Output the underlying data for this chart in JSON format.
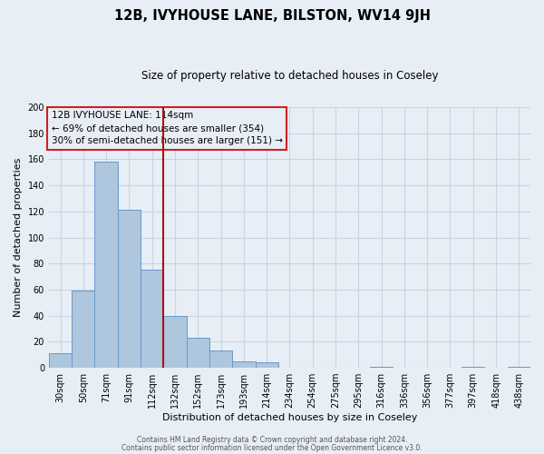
{
  "title": "12B, IVYHOUSE LANE, BILSTON, WV14 9JH",
  "subtitle": "Size of property relative to detached houses in Coseley",
  "xlabel": "Distribution of detached houses by size in Coseley",
  "ylabel": "Number of detached properties",
  "bar_labels": [
    "30sqm",
    "50sqm",
    "71sqm",
    "91sqm",
    "112sqm",
    "132sqm",
    "152sqm",
    "173sqm",
    "193sqm",
    "214sqm",
    "234sqm",
    "254sqm",
    "275sqm",
    "295sqm",
    "316sqm",
    "336sqm",
    "356sqm",
    "377sqm",
    "397sqm",
    "418sqm",
    "438sqm"
  ],
  "bar_values": [
    11,
    59,
    158,
    121,
    75,
    40,
    23,
    13,
    5,
    4,
    0,
    0,
    0,
    0,
    1,
    0,
    0,
    0,
    1,
    0,
    1
  ],
  "bar_color": "#aec6de",
  "bar_edge_color": "#6699cc",
  "vline_x": 4.5,
  "vline_color": "#aa1111",
  "ylim": [
    0,
    200
  ],
  "yticks": [
    0,
    20,
    40,
    60,
    80,
    100,
    120,
    140,
    160,
    180,
    200
  ],
  "annotation_line1": "12B IVYHOUSE LANE: 114sqm",
  "annotation_line2": "← 69% of detached houses are smaller (354)",
  "annotation_line3": "30% of semi-detached houses are larger (151) →",
  "grid_color": "#c8d4e4",
  "background_color": "#e8eef5",
  "plot_bg_color": "#e8eef5",
  "footer_line1": "Contains HM Land Registry data © Crown copyright and database right 2024.",
  "footer_line2": "Contains public sector information licensed under the Open Government Licence v3.0.",
  "title_fontsize": 10.5,
  "subtitle_fontsize": 8.5,
  "ylabel_fontsize": 8,
  "xlabel_fontsize": 8,
  "tick_fontsize": 7,
  "annotation_fontsize": 7.5,
  "footer_fontsize": 5.5
}
